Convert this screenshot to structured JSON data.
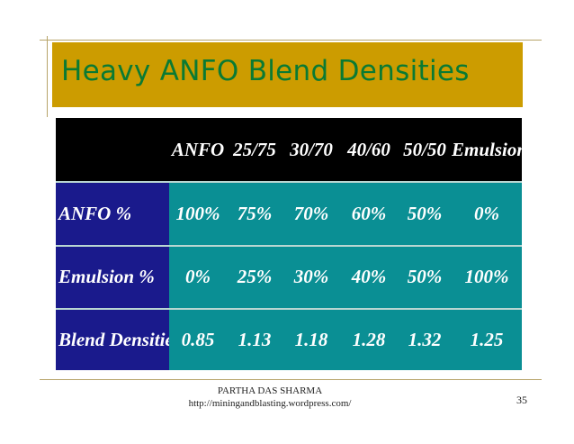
{
  "slide": {
    "title": "Heavy ANFO Blend Densities",
    "page_number": "35"
  },
  "colors": {
    "title_bar": "#cc9c00",
    "title_text": "#0a7a33",
    "table_header_bg": "#000000",
    "row_label_bg": "#1a1a8c",
    "cell_bg": "#0a8f94",
    "cell_text": "#ffffff"
  },
  "table": {
    "columns": [
      "",
      "ANFO",
      "25/75",
      "30/70",
      "40/60",
      "50/50",
      "Emulsion"
    ],
    "rows": [
      {
        "label": "ANFO %",
        "values": [
          "100%",
          "75%",
          "70%",
          "60%",
          "50%",
          "0%"
        ]
      },
      {
        "label": "Emulsion %",
        "values": [
          "0%",
          "25%",
          "30%",
          "40%",
          "50%",
          "100%"
        ]
      },
      {
        "label": "Blend Densities",
        "values": [
          "0.85",
          "1.13",
          "1.18",
          "1.28",
          "1.32",
          "1.25"
        ]
      }
    ]
  },
  "footer": {
    "author": "PARTHA DAS SHARMA",
    "url": "http://miningandblasting.wordpress.com/"
  }
}
